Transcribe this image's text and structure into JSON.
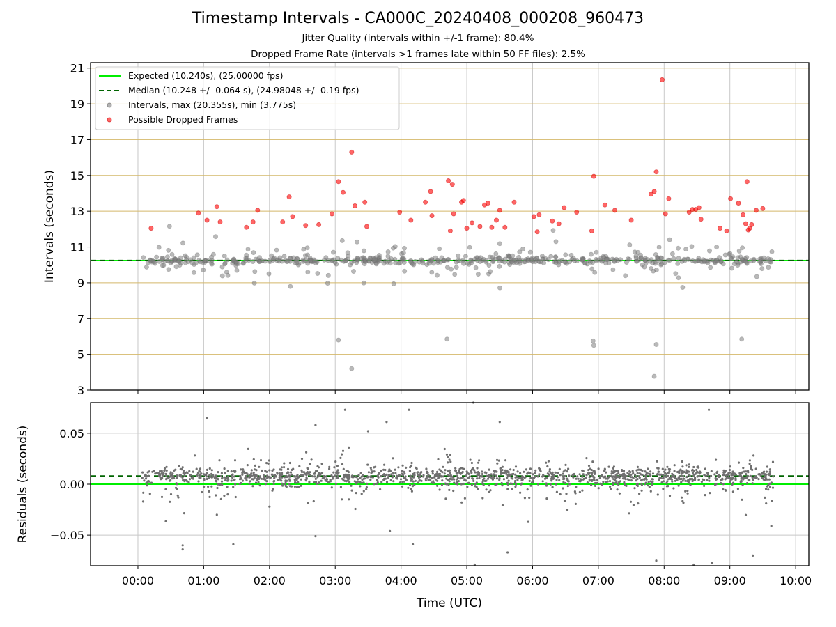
{
  "title": "Timestamp Intervals - CA000C_20240408_000208_960473",
  "subtitle_1": "Jitter Quality (intervals within +/-1 frame): 80.4%",
  "subtitle_2": "Dropped Frame Rate (intervals >1 frames late within 50 FF files): 2.5%",
  "colors": {
    "expected": "#00ee00",
    "median": "#006400",
    "intervals": "#808080",
    "dropped": "#ff0000",
    "hgrid_top": "#d4b86a",
    "vgrid": "#c8c8c8"
  },
  "chart_data": [
    {
      "type": "scatter",
      "panel": "intervals",
      "xlabel": "",
      "ylabel": "Intervals (seconds)",
      "ylim": [
        3,
        21.3
      ],
      "xlim_hours": [
        -0.72,
        10.2
      ],
      "yticks": [
        3,
        5,
        7,
        9,
        11,
        13,
        15,
        17,
        19,
        21
      ],
      "ytick_labels": [
        "3",
        "5",
        "7",
        "9",
        "11",
        "13",
        "15",
        "17",
        "19",
        "21"
      ],
      "grid": true,
      "legend_position": "top-left",
      "expected_line": 10.24,
      "median_line": 10.248,
      "legend": [
        "Expected (10.240s), (25.00000 fps)",
        "Median (10.248 +/- 0.064 s), (24.98048 +/- 0.19 fps)",
        "Intervals, max (20.355s), min (3.775s)",
        "Possible Dropped Frames"
      ],
      "series": [
        {
          "name": "Possible Dropped Frames",
          "x_hours": [
            0.2,
            0.92,
            1.05,
            1.2,
            1.25,
            1.65,
            1.75,
            1.82,
            2.2,
            2.3,
            2.35,
            2.55,
            2.75,
            2.95,
            3.05,
            3.12,
            3.25,
            3.3,
            3.45,
            3.48,
            3.98,
            4.15,
            4.37,
            4.45,
            4.47,
            4.72,
            4.75,
            4.78,
            4.8,
            4.92,
            4.95,
            5.0,
            5.08,
            5.2,
            5.27,
            5.32,
            5.38,
            5.45,
            5.5,
            5.58,
            5.72,
            6.02,
            6.07,
            6.1,
            6.3,
            6.4,
            6.48,
            6.67,
            6.9,
            6.93,
            7.1,
            7.25,
            7.5,
            7.8,
            7.85,
            7.88,
            7.97,
            8.02,
            8.07,
            8.38,
            8.43,
            8.48,
            8.53,
            8.56,
            8.85,
            8.95,
            9.01,
            9.13,
            9.2,
            9.24,
            9.26,
            9.28,
            9.3,
            9.33,
            9.4,
            9.5
          ],
          "y": [
            12.05,
            12.9,
            12.5,
            13.25,
            12.4,
            12.1,
            12.4,
            13.05,
            12.4,
            13.8,
            12.7,
            12.2,
            12.25,
            12.85,
            14.65,
            14.05,
            16.3,
            13.3,
            13.5,
            12.15,
            12.95,
            12.5,
            13.5,
            14.1,
            12.75,
            14.7,
            11.9,
            14.5,
            12.85,
            13.5,
            13.6,
            12.05,
            12.35,
            12.15,
            13.35,
            13.45,
            12.1,
            12.5,
            13.05,
            12.1,
            13.5,
            12.7,
            11.85,
            12.8,
            12.45,
            12.3,
            13.2,
            12.95,
            11.9,
            14.95,
            13.35,
            13.05,
            12.5,
            13.95,
            14.1,
            15.2,
            20.35,
            12.85,
            13.7,
            12.95,
            13.1,
            13.1,
            13.2,
            12.55,
            12.05,
            11.9,
            13.7,
            13.45,
            12.8,
            12.3,
            14.65,
            11.95,
            12.05,
            12.25,
            13.05,
            13.15
          ]
        }
      ]
    },
    {
      "type": "scatter",
      "panel": "residuals",
      "xlabel": "Time (UTC)",
      "ylabel": "Residuals (seconds)",
      "ylim": [
        -0.08,
        0.08
      ],
      "xlim_hours": [
        -0.72,
        10.2
      ],
      "yticks": [
        -0.05,
        0.0,
        0.05
      ],
      "ytick_labels": [
        "−0.05",
        "0.00",
        "0.05"
      ],
      "xticks_hours": [
        0,
        1,
        2,
        3,
        4,
        5,
        6,
        7,
        8,
        9,
        10
      ],
      "xtick_labels": [
        "00:00",
        "01:00",
        "02:00",
        "03:00",
        "04:00",
        "05:00",
        "06:00",
        "07:00",
        "08:00",
        "09:00",
        "10:00"
      ],
      "grid": true,
      "zero_line": 0.0,
      "median_line": 0.008,
      "outliers": {
        "x_hours": [
          0.08,
          0.68,
          0.68,
          1.05,
          1.2,
          1.45,
          2.0,
          2.7,
          2.7,
          3.15,
          3.5,
          3.78,
          3.83,
          4.12,
          4.18,
          5.1,
          5.12,
          5.5,
          5.62,
          7.88,
          8.45,
          8.68,
          8.73,
          9.35,
          9.63
        ],
        "y": [
          -0.017,
          -0.06,
          -0.064,
          0.065,
          -0.03,
          -0.059,
          -0.022,
          -0.051,
          0.058,
          0.073,
          0.052,
          0.061,
          -0.046,
          0.073,
          -0.059,
          0.08,
          -0.079,
          0.061,
          -0.067,
          -0.075,
          -0.079,
          0.073,
          -0.077,
          -0.07,
          -0.041
        ]
      }
    }
  ]
}
